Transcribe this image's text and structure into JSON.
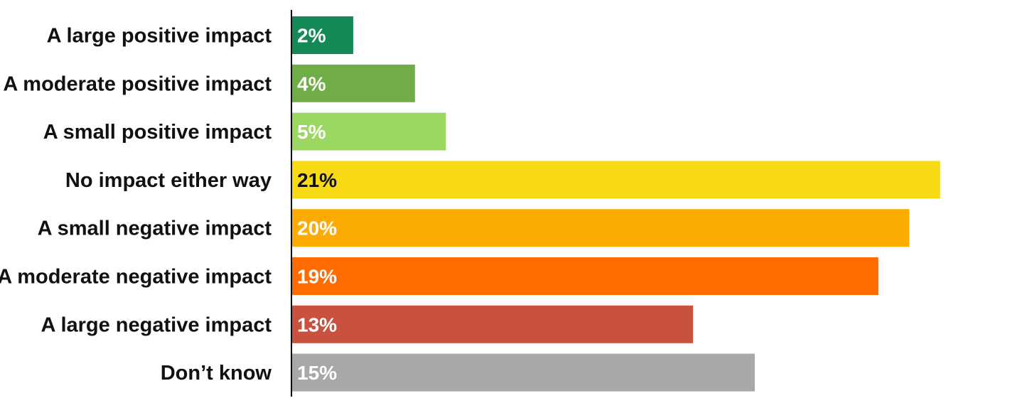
{
  "chart_data": {
    "type": "bar",
    "orientation": "horizontal",
    "categories": [
      "A large positive impact",
      "A moderate positive impact",
      "A small positive impact",
      "No impact either way",
      "A small negative impact",
      "A moderate negative impact",
      "A large negative impact",
      "Don’t know"
    ],
    "values": [
      2,
      4,
      5,
      21,
      20,
      19,
      13,
      15
    ],
    "value_labels": [
      "2%",
      "4%",
      "5%",
      "21%",
      "20%",
      "19%",
      "13%",
      "15%"
    ],
    "colors": [
      "#138a55",
      "#70ad47",
      "#9ad863",
      "#f7d914",
      "#fbab02",
      "#ff6b00",
      "#c9513f",
      "#a8a8a8"
    ],
    "label_colors": [
      "#ffffff",
      "#ffffff",
      "#ffffff",
      "#111111",
      "#ffffff",
      "#ffffff",
      "#ffffff",
      "#ffffff"
    ],
    "title": "",
    "xlabel": "",
    "ylabel": "",
    "xlim": [
      0,
      22
    ],
    "grid": false,
    "legend": "none",
    "axis_line_color": "#000000"
  }
}
